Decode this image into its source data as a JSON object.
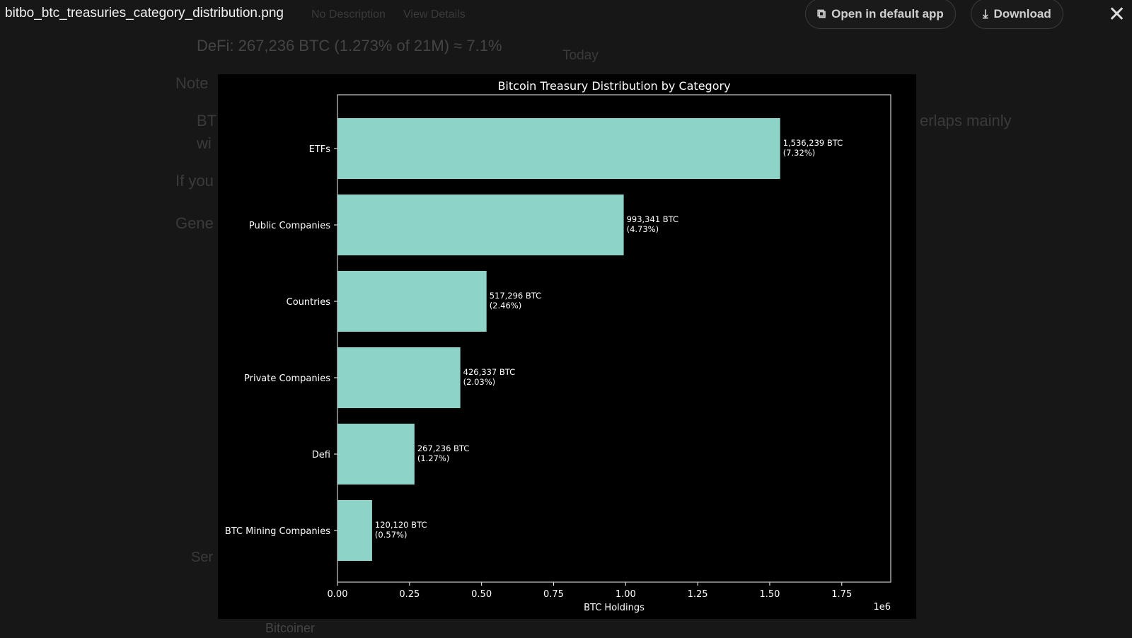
{
  "window": {
    "filename": "bitbo_btc_treasuries_category_distribution.png",
    "open_label": "Open in default app",
    "download_label": "Download",
    "close_icon": "close-icon"
  },
  "background": {
    "meta1": "No Description",
    "meta2": "View Details",
    "bullet_defi": "DeFi: 267,236 BTC (1.273% of 21M) ≈ 7.1%",
    "today": "Today",
    "note": "Note",
    "bt": "BT",
    "wi": "wi",
    "overlaps": "erlaps mainly",
    "ifyou": "If you",
    "gene": "Gene",
    "send": "Ser",
    "bitcoiner": "Bitcoiner"
  },
  "chart_data": {
    "type": "bar",
    "orientation": "horizontal",
    "title": "Bitcoin Treasury Distribution by Category",
    "xlabel": "BTC Holdings",
    "x_offset_label": "1e6",
    "categories": [
      "ETFs",
      "Public Companies",
      "Countries",
      "Private Companies",
      "Defi",
      "BTC Mining Companies"
    ],
    "values": [
      1536239,
      993341,
      517296,
      426337,
      267236,
      120120
    ],
    "data_labels": [
      [
        "1,536,239 BTC",
        "(7.32%)"
      ],
      [
        "993,341 BTC",
        "(4.73%)"
      ],
      [
        "517,296 BTC",
        "(2.46%)"
      ],
      [
        "426,337 BTC",
        "(2.03%)"
      ],
      [
        "267,236 BTC",
        "(1.27%)"
      ],
      [
        "120,120 BTC",
        "(0.57%)"
      ]
    ],
    "xticks": [
      "0.00",
      "0.25",
      "0.50",
      "0.75",
      "1.00",
      "1.25",
      "1.50",
      "1.75"
    ],
    "xlim": [
      0,
      1920000
    ],
    "bar_color": "#8dd3c7",
    "background": "#000000",
    "grid": false
  }
}
